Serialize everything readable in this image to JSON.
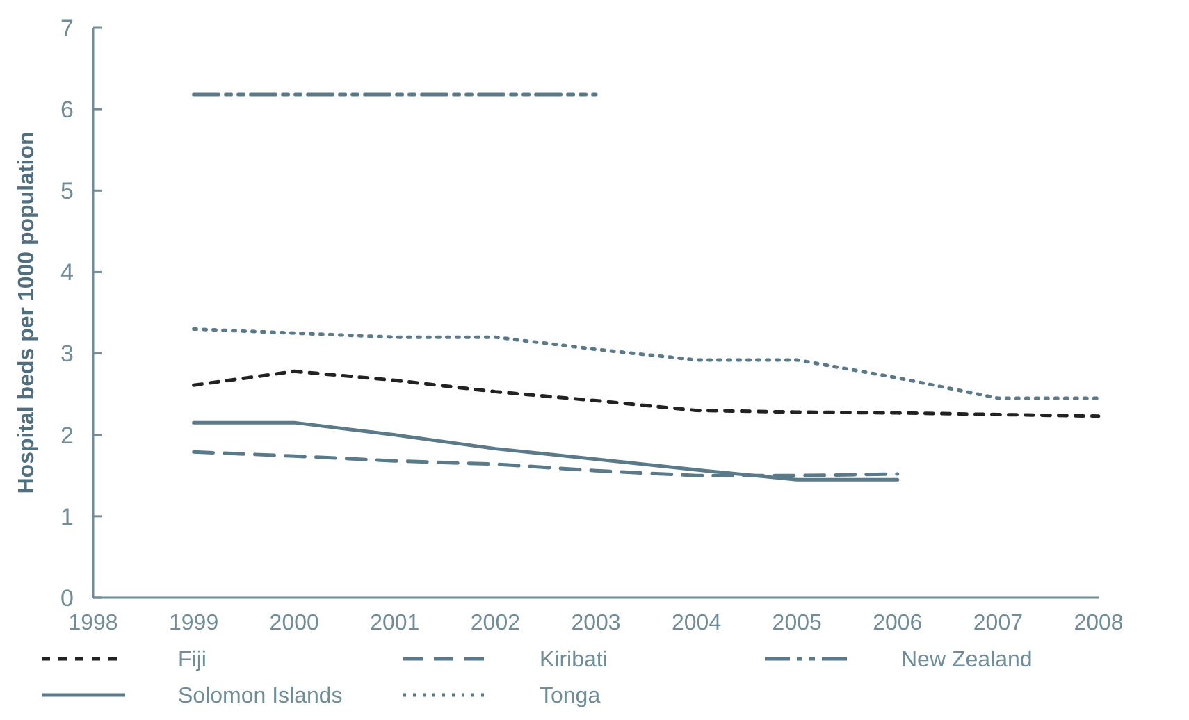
{
  "chart_data": {
    "type": "line",
    "ylabel": "Hospital beds per 1000 population",
    "x": [
      1999,
      2000,
      2001,
      2002,
      2003,
      2004,
      2005,
      2006,
      2007,
      2008
    ],
    "xlim": [
      1998,
      2008
    ],
    "xticks": [
      1998,
      1999,
      2000,
      2001,
      2002,
      2003,
      2004,
      2005,
      2006,
      2007,
      2008
    ],
    "ylim": [
      0,
      7
    ],
    "yticks": [
      0,
      1,
      2,
      3,
      4,
      5,
      6,
      7
    ],
    "grid": false,
    "legend": "bottom",
    "marker": "none",
    "series": [
      {
        "name": "Fiji",
        "color": "#222222",
        "line_style": "dashed",
        "values": [
          2.61,
          2.78,
          2.67,
          2.53,
          2.42,
          2.3,
          2.28,
          2.27,
          2.25,
          2.23
        ]
      },
      {
        "name": "Kiribati",
        "color": "#5a7a8a",
        "line_style": "longdash",
        "values": [
          1.79,
          1.74,
          1.68,
          1.64,
          1.56,
          1.5,
          1.5,
          1.52,
          null,
          null
        ]
      },
      {
        "name": "New Zealand",
        "color": "#5a7a8a",
        "line_style": "dashdot",
        "values": [
          6.18,
          6.18,
          6.18,
          6.18,
          6.18,
          null,
          null,
          null,
          null,
          null
        ]
      },
      {
        "name": "Solomon Islands",
        "color": "#5a7a8a",
        "line_style": "solid",
        "values": [
          2.15,
          2.15,
          2.0,
          1.83,
          1.7,
          1.57,
          1.45,
          1.45,
          null,
          null
        ]
      },
      {
        "name": "Tonga",
        "color": "#5a7a8a",
        "line_style": "dotted",
        "values": [
          3.3,
          3.25,
          3.2,
          3.2,
          3.05,
          2.92,
          2.92,
          2.7,
          2.45,
          2.45
        ]
      }
    ]
  }
}
